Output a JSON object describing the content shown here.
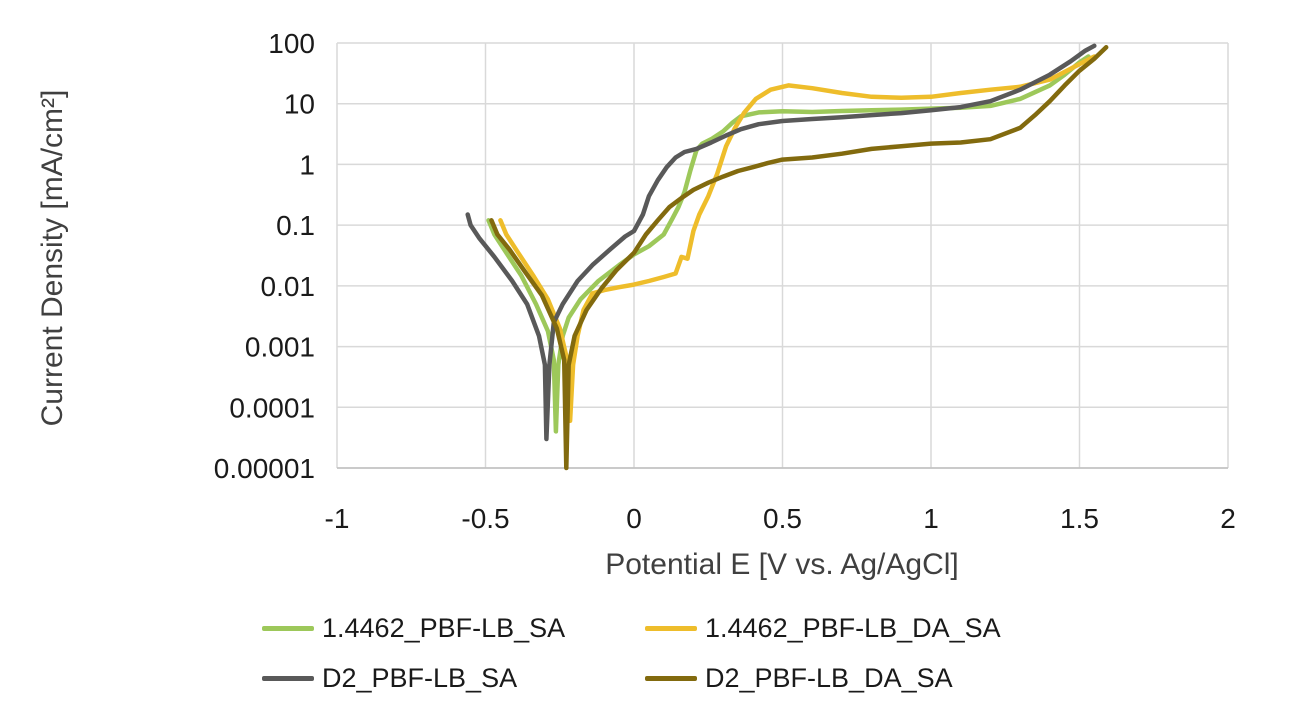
{
  "chart_data": {
    "type": "line",
    "title": "",
    "xlabel": "Potential E [V vs. Ag/AgCl]",
    "ylabel": "Current Density [mA/cm²]",
    "x_scale": "linear",
    "y_scale": "log",
    "xlim": [
      -1,
      2
    ],
    "ylim": [
      1e-05,
      100
    ],
    "x_ticks": [
      -1,
      -0.5,
      0,
      0.5,
      1,
      1.5,
      2
    ],
    "x_tick_labels": [
      "-1",
      "-0.5",
      "0",
      "0.5",
      "1",
      "1.5",
      "2"
    ],
    "y_ticks": [
      1e-05,
      0.0001,
      0.001,
      0.01,
      0.1,
      1,
      10,
      100
    ],
    "y_tick_labels": [
      "0.00001",
      "0.0001",
      "0.001",
      "0.01",
      "0.1",
      "1",
      "10",
      "100"
    ],
    "grid": true,
    "legend_position": "bottom",
    "series": [
      {
        "name": "1.4462_PBF-LB_SA",
        "color": "#9dc85a",
        "points": [
          [
            -0.49,
            0.12
          ],
          [
            -0.47,
            0.07
          ],
          [
            -0.43,
            0.035
          ],
          [
            -0.38,
            0.015
          ],
          [
            -0.33,
            0.005
          ],
          [
            -0.29,
            0.0018
          ],
          [
            -0.27,
            0.0006
          ],
          [
            -0.263,
            4e-05
          ],
          [
            -0.255,
            0.0005
          ],
          [
            -0.24,
            0.0015
          ],
          [
            -0.22,
            0.003
          ],
          [
            -0.18,
            0.006
          ],
          [
            -0.12,
            0.012
          ],
          [
            -0.05,
            0.022
          ],
          [
            0.0,
            0.033
          ],
          [
            0.05,
            0.045
          ],
          [
            0.1,
            0.07
          ],
          [
            0.13,
            0.13
          ],
          [
            0.15,
            0.2
          ],
          [
            0.17,
            0.35
          ],
          [
            0.19,
            0.8
          ],
          [
            0.21,
            1.7
          ],
          [
            0.23,
            2.2
          ],
          [
            0.26,
            2.6
          ],
          [
            0.3,
            3.5
          ],
          [
            0.33,
            4.8
          ],
          [
            0.36,
            6.2
          ],
          [
            0.42,
            7.2
          ],
          [
            0.5,
            7.5
          ],
          [
            0.6,
            7.3
          ],
          [
            0.7,
            7.6
          ],
          [
            0.8,
            7.8
          ],
          [
            0.9,
            8.0
          ],
          [
            1.0,
            8.3
          ],
          [
            1.1,
            8.6
          ],
          [
            1.2,
            9.2
          ],
          [
            1.3,
            12
          ],
          [
            1.4,
            20
          ],
          [
            1.45,
            30
          ],
          [
            1.5,
            48
          ],
          [
            1.53,
            60
          ]
        ]
      },
      {
        "name": "1.4462_PBF-LB_DA_SA",
        "color": "#eebd2b",
        "points": [
          [
            -0.45,
            0.12
          ],
          [
            -0.43,
            0.07
          ],
          [
            -0.39,
            0.035
          ],
          [
            -0.34,
            0.015
          ],
          [
            -0.29,
            0.006
          ],
          [
            -0.25,
            0.002
          ],
          [
            -0.225,
            0.0006
          ],
          [
            -0.215,
            6e-05
          ],
          [
            -0.205,
            0.0005
          ],
          [
            -0.19,
            0.0015
          ],
          [
            -0.17,
            0.004
          ],
          [
            -0.14,
            0.0075
          ],
          [
            -0.1,
            0.0085
          ],
          [
            -0.05,
            0.0095
          ],
          [
            0.0,
            0.0105
          ],
          [
            0.05,
            0.012
          ],
          [
            0.1,
            0.014
          ],
          [
            0.14,
            0.016
          ],
          [
            0.16,
            0.03
          ],
          [
            0.18,
            0.028
          ],
          [
            0.2,
            0.08
          ],
          [
            0.22,
            0.15
          ],
          [
            0.25,
            0.3
          ],
          [
            0.28,
            0.7
          ],
          [
            0.31,
            2.0
          ],
          [
            0.34,
            4.0
          ],
          [
            0.37,
            7.0
          ],
          [
            0.41,
            12
          ],
          [
            0.46,
            17
          ],
          [
            0.52,
            20
          ],
          [
            0.6,
            18
          ],
          [
            0.7,
            15
          ],
          [
            0.8,
            13
          ],
          [
            0.9,
            12.5
          ],
          [
            1.0,
            13
          ],
          [
            1.1,
            15
          ],
          [
            1.2,
            17
          ],
          [
            1.3,
            19
          ],
          [
            1.4,
            25
          ],
          [
            1.5,
            45
          ],
          [
            1.55,
            60
          ]
        ]
      },
      {
        "name": "D2_PBF-LB_SA",
        "color": "#595959",
        "points": [
          [
            -0.56,
            0.15
          ],
          [
            -0.55,
            0.1
          ],
          [
            -0.52,
            0.06
          ],
          [
            -0.47,
            0.03
          ],
          [
            -0.41,
            0.012
          ],
          [
            -0.36,
            0.005
          ],
          [
            -0.32,
            0.0015
          ],
          [
            -0.3,
            0.0005
          ],
          [
            -0.295,
            3e-05
          ],
          [
            -0.285,
            0.0005
          ],
          [
            -0.27,
            0.0025
          ],
          [
            -0.24,
            0.005
          ],
          [
            -0.19,
            0.012
          ],
          [
            -0.14,
            0.022
          ],
          [
            -0.08,
            0.04
          ],
          [
            -0.03,
            0.065
          ],
          [
            0.0,
            0.08
          ],
          [
            0.03,
            0.15
          ],
          [
            0.05,
            0.3
          ],
          [
            0.08,
            0.55
          ],
          [
            0.11,
            0.9
          ],
          [
            0.14,
            1.3
          ],
          [
            0.17,
            1.6
          ],
          [
            0.21,
            1.8
          ],
          [
            0.26,
            2.3
          ],
          [
            0.31,
            3.0
          ],
          [
            0.36,
            3.8
          ],
          [
            0.42,
            4.6
          ],
          [
            0.5,
            5.2
          ],
          [
            0.6,
            5.6
          ],
          [
            0.7,
            6.0
          ],
          [
            0.8,
            6.5
          ],
          [
            0.9,
            7.0
          ],
          [
            1.0,
            7.8
          ],
          [
            1.1,
            8.8
          ],
          [
            1.2,
            11
          ],
          [
            1.3,
            17
          ],
          [
            1.4,
            30
          ],
          [
            1.47,
            50
          ],
          [
            1.52,
            75
          ],
          [
            1.55,
            90
          ]
        ]
      },
      {
        "name": "D2_PBF-LB_DA_SA",
        "color": "#826a0e",
        "points": [
          [
            -0.48,
            0.12
          ],
          [
            -0.46,
            0.07
          ],
          [
            -0.42,
            0.04
          ],
          [
            -0.37,
            0.018
          ],
          [
            -0.31,
            0.007
          ],
          [
            -0.26,
            0.002
          ],
          [
            -0.235,
            0.0006
          ],
          [
            -0.228,
            1e-05
          ],
          [
            -0.22,
            0.0005
          ],
          [
            -0.2,
            0.0015
          ],
          [
            -0.16,
            0.004
          ],
          [
            -0.11,
            0.009
          ],
          [
            -0.06,
            0.018
          ],
          [
            0.0,
            0.035
          ],
          [
            0.04,
            0.07
          ],
          [
            0.08,
            0.12
          ],
          [
            0.12,
            0.2
          ],
          [
            0.16,
            0.28
          ],
          [
            0.2,
            0.38
          ],
          [
            0.25,
            0.5
          ],
          [
            0.3,
            0.63
          ],
          [
            0.35,
            0.78
          ],
          [
            0.4,
            0.9
          ],
          [
            0.45,
            1.05
          ],
          [
            0.5,
            1.2
          ],
          [
            0.6,
            1.3
          ],
          [
            0.7,
            1.5
          ],
          [
            0.8,
            1.8
          ],
          [
            0.9,
            2.0
          ],
          [
            1.0,
            2.2
          ],
          [
            1.1,
            2.3
          ],
          [
            1.2,
            2.6
          ],
          [
            1.3,
            4.0
          ],
          [
            1.35,
            6.5
          ],
          [
            1.4,
            11
          ],
          [
            1.45,
            20
          ],
          [
            1.5,
            35
          ],
          [
            1.55,
            55
          ],
          [
            1.59,
            85
          ]
        ]
      }
    ]
  }
}
